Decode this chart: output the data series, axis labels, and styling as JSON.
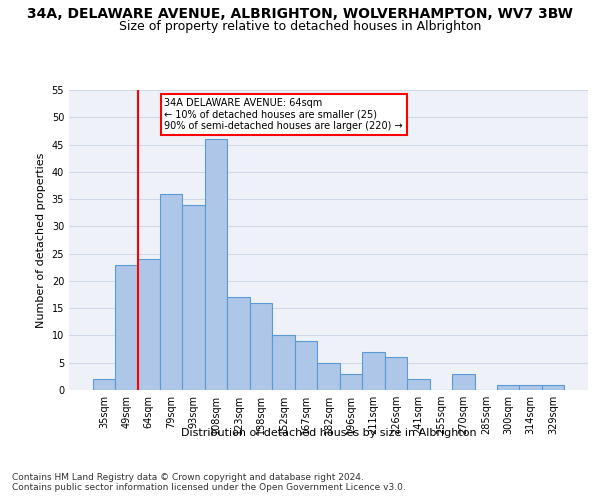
{
  "title": "34A, DELAWARE AVENUE, ALBRIGHTON, WOLVERHAMPTON, WV7 3BW",
  "subtitle": "Size of property relative to detached houses in Albrighton",
  "xlabel": "Distribution of detached houses by size in Albrighton",
  "ylabel": "Number of detached properties",
  "categories": [
    "35sqm",
    "49sqm",
    "64sqm",
    "79sqm",
    "93sqm",
    "108sqm",
    "123sqm",
    "138sqm",
    "152sqm",
    "167sqm",
    "182sqm",
    "196sqm",
    "211sqm",
    "226sqm",
    "241sqm",
    "255sqm",
    "270sqm",
    "285sqm",
    "300sqm",
    "314sqm",
    "329sqm"
  ],
  "values": [
    2,
    23,
    24,
    36,
    34,
    46,
    17,
    16,
    10,
    9,
    5,
    3,
    7,
    6,
    2,
    0,
    3,
    0,
    1,
    1,
    1
  ],
  "bar_color": "#aec6e8",
  "bar_edge_color": "#5b9bd5",
  "bar_edge_width": 0.8,
  "grid_color": "#d0d8e8",
  "bg_color": "#eef2f8",
  "annotation_text": "34A DELAWARE AVENUE: 64sqm\n← 10% of detached houses are smaller (25)\n90% of semi-detached houses are larger (220) →",
  "annotation_box_color": "white",
  "annotation_box_edge_color": "red",
  "vline_x_index": 2,
  "vline_color": "red",
  "ylim": [
    0,
    55
  ],
  "yticks": [
    0,
    5,
    10,
    15,
    20,
    25,
    30,
    35,
    40,
    45,
    50,
    55
  ],
  "footer_line1": "Contains HM Land Registry data © Crown copyright and database right 2024.",
  "footer_line2": "Contains public sector information licensed under the Open Government Licence v3.0.",
  "title_fontsize": 10,
  "subtitle_fontsize": 9,
  "tick_fontsize": 7,
  "ylabel_fontsize": 8,
  "xlabel_fontsize": 8,
  "footer_fontsize": 6.5
}
